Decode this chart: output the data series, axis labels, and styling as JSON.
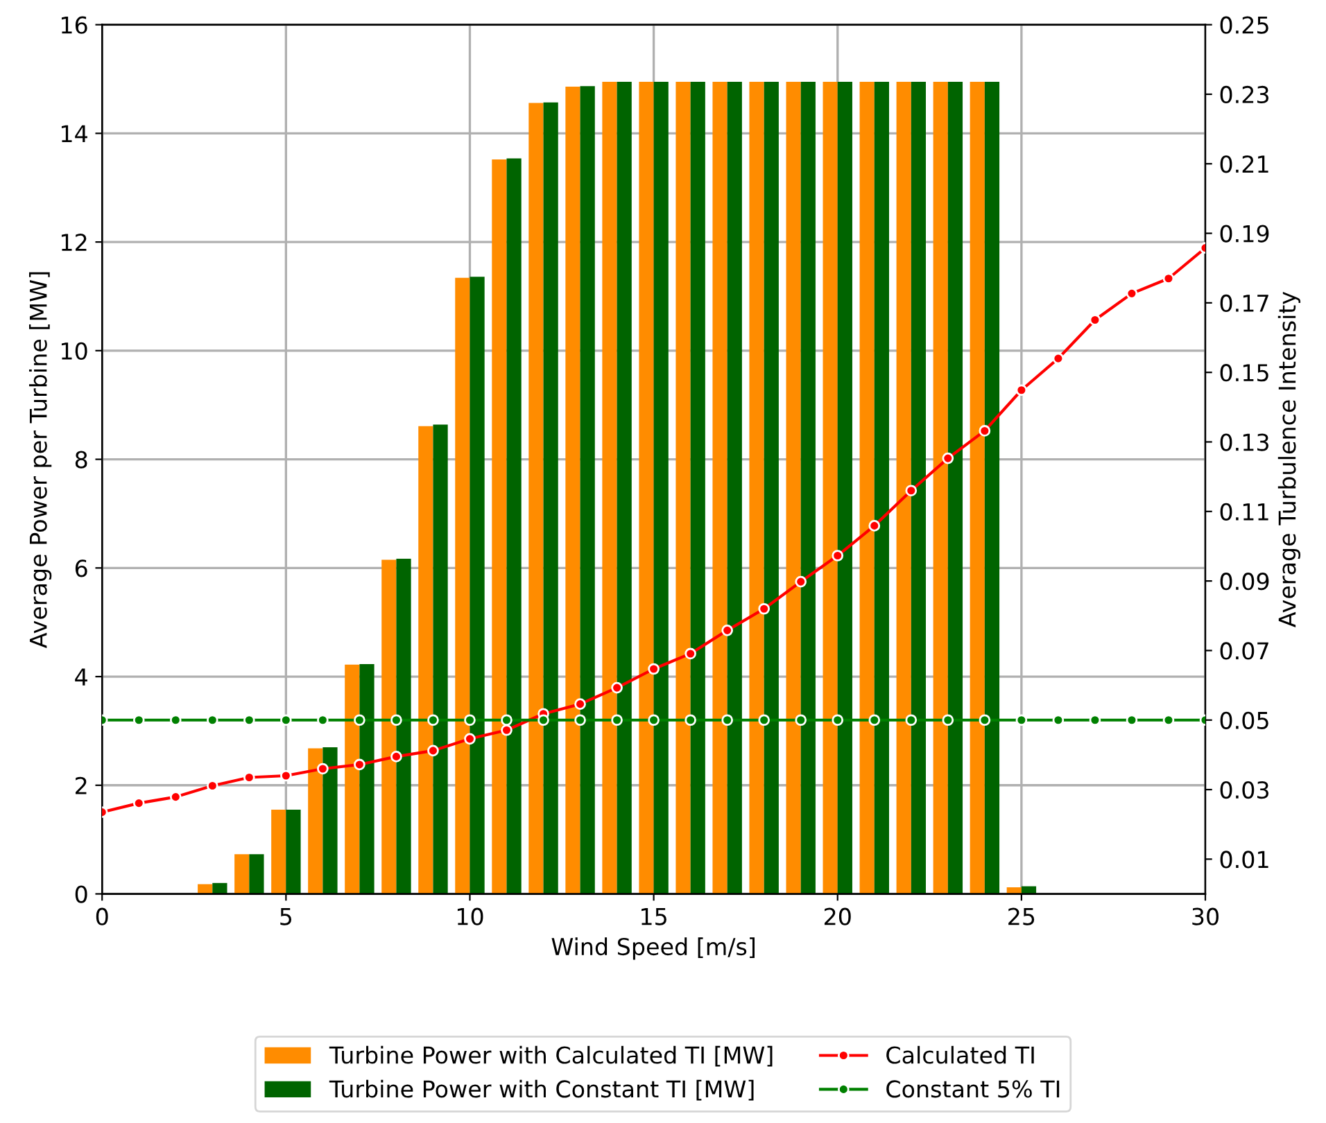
{
  "chart_data": {
    "type": "bar",
    "xlabel": "Wind Speed [m/s]",
    "ylabel": "Average Power per Turbine [MW]",
    "y2label": "Average Turbulence Intensity",
    "xlim": [
      0,
      30
    ],
    "xticks": [
      0,
      5,
      10,
      15,
      20,
      25,
      30
    ],
    "ylim": [
      0,
      16
    ],
    "yticks": [
      0,
      2,
      4,
      6,
      8,
      10,
      12,
      14,
      16
    ],
    "y2lim": [
      0,
      0.25
    ],
    "y2ticks": [
      0.01,
      0.03,
      0.05,
      0.07,
      0.09,
      0.11,
      0.13,
      0.15,
      0.17,
      0.19,
      0.21,
      0.23,
      0.25
    ],
    "grid": true,
    "legend": "bottom",
    "series": [
      {
        "name": "Turbine Power with Calculated TI [MW]",
        "color": "#ff8c00",
        "x": [
          3,
          4,
          5,
          6,
          7,
          8,
          9,
          10,
          11,
          12,
          13,
          14,
          15,
          16,
          17,
          18,
          19,
          20,
          21,
          22,
          23,
          24,
          25
        ],
        "values": [
          0.18,
          0.73,
          1.55,
          2.68,
          4.22,
          6.15,
          8.61,
          11.34,
          13.52,
          14.56,
          14.86,
          14.95,
          14.95,
          14.95,
          14.95,
          14.95,
          14.95,
          14.95,
          14.95,
          14.95,
          14.95,
          14.95,
          0.12
        ]
      },
      {
        "name": "Turbine Power with Constant TI [MW]",
        "color": "#006400",
        "x": [
          3,
          4,
          5,
          6,
          7,
          8,
          9,
          10,
          11,
          12,
          13,
          14,
          15,
          16,
          17,
          18,
          19,
          20,
          21,
          22,
          23,
          24,
          25
        ],
        "values": [
          0.2,
          0.73,
          1.55,
          2.7,
          4.23,
          6.17,
          8.64,
          11.36,
          13.54,
          14.57,
          14.87,
          14.95,
          14.95,
          14.95,
          14.95,
          14.95,
          14.95,
          14.95,
          14.95,
          14.95,
          14.95,
          14.95,
          0.14
        ]
      },
      {
        "name": "Calculated TI",
        "type": "line",
        "axis": "y2",
        "color": "#ff0000",
        "marker": "circle",
        "line_style": "solid",
        "x": [
          0,
          1,
          2,
          3,
          4,
          5,
          6,
          7,
          8,
          9,
          10,
          11,
          12,
          13,
          14,
          15,
          16,
          17,
          18,
          19,
          20,
          21,
          22,
          23,
          24,
          25,
          26,
          27,
          28,
          29,
          30
        ],
        "values": [
          0.0235,
          0.0261,
          0.0279,
          0.0311,
          0.0335,
          0.034,
          0.036,
          0.0372,
          0.0395,
          0.0412,
          0.0446,
          0.0471,
          0.0518,
          0.0546,
          0.0593,
          0.0647,
          0.0691,
          0.0758,
          0.082,
          0.0898,
          0.0973,
          0.1059,
          0.116,
          0.1253,
          0.1332,
          0.1449,
          0.154,
          0.1651,
          0.1727,
          0.177,
          0.1858
        ]
      },
      {
        "name": "Constant 5% TI",
        "type": "line",
        "axis": "y2",
        "color": "#008000",
        "marker": "circle",
        "line_style": "solid",
        "x": [
          0,
          1,
          2,
          3,
          4,
          5,
          6,
          7,
          8,
          9,
          10,
          11,
          12,
          13,
          14,
          15,
          16,
          17,
          18,
          19,
          20,
          21,
          22,
          23,
          24,
          25,
          26,
          27,
          28,
          29,
          30
        ],
        "values": [
          0.05,
          0.05,
          0.05,
          0.05,
          0.05,
          0.05,
          0.05,
          0.05,
          0.05,
          0.05,
          0.05,
          0.05,
          0.05,
          0.05,
          0.05,
          0.05,
          0.05,
          0.05,
          0.05,
          0.05,
          0.05,
          0.05,
          0.05,
          0.05,
          0.05,
          0.05,
          0.05,
          0.05,
          0.05,
          0.05,
          0.05
        ]
      }
    ]
  }
}
